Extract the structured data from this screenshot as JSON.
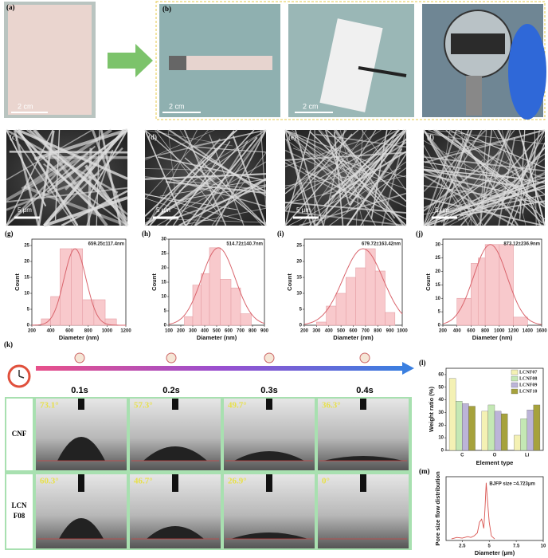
{
  "photo_a": {
    "label": "(a)",
    "scale": "2 cm"
  },
  "photo_b": {
    "label": "(b)",
    "scales": [
      "2 cm",
      "2 cm"
    ]
  },
  "sem": [
    {
      "label": "(c)",
      "scale": "5 μm"
    },
    {
      "label": "(d)",
      "scale": "5 μm"
    },
    {
      "label": "(e)",
      "scale": "5 μm"
    },
    {
      "label": "(f)",
      "scale": "5 μm"
    }
  ],
  "contact_angle": {
    "label": "(k)",
    "times": [
      "0.1s",
      "0.2s",
      "0.3s",
      "0.4s"
    ],
    "rows": [
      {
        "name": [
          "CNF"
        ],
        "angles": [
          "73.1°",
          "57.3°",
          "49.7°",
          "36.3°"
        ]
      },
      {
        "name": [
          "LCN",
          "F08"
        ],
        "angles": [
          "60.3°",
          "46.7°",
          "26.9°",
          "0°"
        ]
      }
    ]
  },
  "chart_data": [
    {
      "type": "histogram",
      "label": "(g)",
      "annotation": "659.25±117.4nm",
      "xlabel": "Diameter (nm)",
      "ylabel": "Count",
      "color": "#f8c9cc",
      "bins": [
        300,
        400,
        500,
        620,
        740,
        860,
        980,
        1100
      ],
      "values": [
        2,
        9,
        24,
        24,
        8,
        8,
        2
      ],
      "xlim": [
        200,
        1200
      ],
      "xticks": [
        200,
        400,
        600,
        800,
        1000,
        1200
      ],
      "ylim": [
        0,
        27
      ],
      "yticks": [
        0,
        5,
        10,
        15,
        20,
        25
      ],
      "fit": {
        "mean": 659.25,
        "sd": 117.4,
        "peak": 24
      }
    },
    {
      "type": "histogram",
      "label": "(h)",
      "annotation": "514.72±140.7nm",
      "xlabel": "Diameter (nm)",
      "ylabel": "Count",
      "color": "#f8c9cc",
      "bins": [
        230,
        300,
        370,
        440,
        530,
        620,
        700,
        790
      ],
      "values": [
        3,
        14,
        18,
        27,
        16,
        13,
        4
      ],
      "xlim": [
        100,
        900
      ],
      "xticks": [
        100,
        200,
        300,
        400,
        500,
        600,
        700,
        800,
        900
      ],
      "ylim": [
        0,
        30
      ],
      "yticks": [
        0,
        5,
        10,
        15,
        20,
        25,
        30
      ],
      "fit": {
        "mean": 514.72,
        "sd": 140.7,
        "peak": 27
      }
    },
    {
      "type": "histogram",
      "label": "(i)",
      "annotation": "679.72±163.42nm",
      "xlabel": "Diameter (nm)",
      "ylabel": "Count",
      "color": "#f8c9cc",
      "bins": [
        300,
        380,
        460,
        540,
        620,
        700,
        780,
        860,
        940
      ],
      "values": [
        1,
        6,
        10,
        15,
        18,
        24,
        17,
        4
      ],
      "xlim": [
        200,
        1000
      ],
      "xticks": [
        200,
        300,
        400,
        500,
        600,
        700,
        800,
        900,
        1000
      ],
      "ylim": [
        0,
        27
      ],
      "yticks": [
        0,
        5,
        10,
        15,
        20,
        25
      ],
      "fit": {
        "mean": 679.72,
        "sd": 163.42,
        "peak": 24
      }
    },
    {
      "type": "histogram",
      "label": "(j)",
      "annotation": "873.12±236.9nm",
      "xlabel": "Diameter (nm)",
      "ylabel": "Count",
      "color": "#f8c9cc",
      "bins": [
        400,
        600,
        700,
        800,
        1000,
        1200,
        1400
      ],
      "values": [
        10,
        23,
        25,
        30,
        30,
        3
      ],
      "xlim": [
        200,
        1600
      ],
      "xticks": [
        200,
        400,
        600,
        800,
        1000,
        1200,
        1400,
        1600
      ],
      "ylim": [
        0,
        32
      ],
      "yticks": [
        0,
        5,
        10,
        15,
        20,
        25,
        30
      ],
      "fit": {
        "mean": 873.12,
        "sd": 236.9,
        "peak": 30
      }
    },
    {
      "type": "bar",
      "label": "(l)",
      "xlabel": "Element type",
      "ylabel": "Weight ratio (%)",
      "categories": [
        "C",
        "O",
        "Li"
      ],
      "series": [
        {
          "name": "LCNF07",
          "color": "#f4f1b4",
          "values": [
            57,
            31,
            12
          ]
        },
        {
          "name": "LCNF08",
          "color": "#c4e8b4",
          "values": [
            39,
            36,
            25
          ]
        },
        {
          "name": "LCNF09",
          "color": "#bcb4d8",
          "values": [
            37,
            31,
            32
          ]
        },
        {
          "name": "LCNF10",
          "color": "#a6a23c",
          "values": [
            35,
            29,
            36
          ]
        }
      ],
      "ylim": [
        0,
        65
      ],
      "yticks": [
        0,
        10,
        20,
        30,
        40,
        50,
        60
      ],
      "legend": "upper right"
    },
    {
      "type": "line",
      "label": "(m)",
      "xlabel": "Diameter (μm)",
      "ylabel": "Pore size flow distribution",
      "annotation": "BJFP size =4.723μm",
      "x": [
        1.5,
        2,
        2.5,
        3,
        3.3,
        3.6,
        3.9,
        4.1,
        4.3,
        4.5,
        4.6,
        4.72,
        4.8,
        5.0,
        5.2,
        5.5
      ],
      "series": [
        {
          "color": "#d9534f",
          "values": [
            1,
            2,
            1.5,
            2.5,
            2,
            3,
            5,
            12,
            14,
            8,
            20,
            38,
            30,
            12,
            3,
            1
          ]
        }
      ],
      "xlim": [
        1,
        10
      ],
      "xticks": [
        2.5,
        5.0,
        7.5,
        10.0
      ],
      "ylim": [
        0,
        42
      ]
    }
  ]
}
